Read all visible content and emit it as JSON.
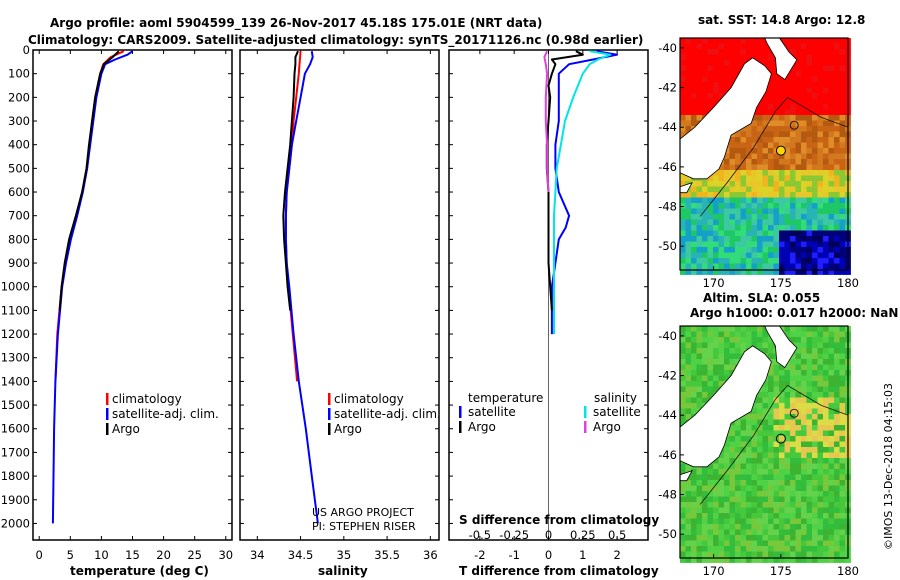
{
  "title": {
    "line1": "Argo profile: aoml 5904599_139 26-Nov-2017 45.18S 175.01E (NRT data)",
    "line2": "Climatology: CARS2009. Satellite-adjusted climatology: synTS_20171126.nc (0.98d earlier)"
  },
  "colors": {
    "climatology": "#ff0000",
    "satellite": "#0000ff",
    "argo": "#000000",
    "sat_salinity": "#00e5e5",
    "argo_salinity": "#e040e0"
  },
  "watermark": "©IMOS 13-Dec-2018 04:15:03",
  "credit": {
    "line1": "US ARGO PROJECT",
    "line2": "PI: STEPHEN RISER"
  },
  "chart_data": [
    {
      "type": "line",
      "id": "temperature",
      "xlabel": "temperature (deg C)",
      "ylabel": "depth",
      "xlim": [
        -1,
        31
      ],
      "ylim": [
        2070,
        0
      ],
      "xticks": [
        0,
        5,
        10,
        15,
        20,
        25,
        30
      ],
      "yticks": [
        0,
        100,
        200,
        300,
        400,
        500,
        600,
        700,
        800,
        900,
        1000,
        1100,
        1200,
        1300,
        1400,
        1500,
        1600,
        1700,
        1800,
        1900,
        2000
      ],
      "legend": {
        "position": "lower-right",
        "entries": [
          "climatology",
          "satellite-adj. clim.",
          "Argo"
        ]
      },
      "series": [
        {
          "name": "climatology",
          "color": "#ff0000",
          "depth": [
            5,
            30,
            60,
            100,
            150,
            200,
            300,
            400,
            500,
            600,
            700,
            800,
            900,
            1000,
            1200,
            1400
          ],
          "values": [
            13.6,
            11.5,
            10.3,
            9.8,
            9.4,
            9.0,
            8.5,
            8.1,
            7.7,
            7.0,
            6.0,
            5.0,
            4.2,
            3.6,
            2.9,
            2.6
          ]
        },
        {
          "name": "satellite-adj. clim.",
          "color": "#0000ff",
          "depth": [
            5,
            20,
            40,
            60,
            100,
            150,
            200,
            300,
            400,
            500,
            600,
            700,
            800,
            900,
            1000,
            1200,
            1400,
            1600,
            1800,
            2000
          ],
          "values": [
            15.0,
            14.2,
            12.2,
            10.6,
            10.0,
            9.6,
            9.2,
            8.7,
            8.2,
            7.7,
            7.0,
            6.1,
            5.1,
            4.3,
            3.7,
            3.0,
            2.6,
            2.4,
            2.3,
            2.2
          ]
        },
        {
          "name": "Argo",
          "color": "#000000",
          "depth": [
            5,
            30,
            60,
            100,
            150,
            200,
            300,
            400,
            500,
            600,
            700,
            800,
            900,
            1000,
            1100
          ],
          "values": [
            12.8,
            11.8,
            10.4,
            9.8,
            9.4,
            9.0,
            8.5,
            8.0,
            7.6,
            6.9,
            5.9,
            4.8,
            4.1,
            3.6,
            3.3
          ]
        }
      ]
    },
    {
      "type": "line",
      "id": "salinity",
      "xlabel": "salinity",
      "xlim": [
        33.8,
        36.1
      ],
      "ylim": [
        2070,
        0
      ],
      "xticks": [
        34,
        34.5,
        35,
        35.5,
        36
      ],
      "legend": {
        "position": "lower-right",
        "entries": [
          "climatology",
          "satellite-adj. clim.",
          "Argo"
        ]
      },
      "series": [
        {
          "name": "climatology",
          "color": "#ff0000",
          "depth": [
            5,
            50,
            100,
            200,
            300,
            400,
            500,
            600,
            700,
            800,
            900,
            1000,
            1200,
            1400
          ],
          "values": [
            34.5,
            34.49,
            34.48,
            34.45,
            34.42,
            34.4,
            34.37,
            34.34,
            34.33,
            34.33,
            34.34,
            34.36,
            34.41,
            34.46
          ]
        },
        {
          "name": "satellite-adj. clim.",
          "color": "#0000ff",
          "depth": [
            5,
            30,
            60,
            100,
            200,
            300,
            400,
            500,
            600,
            700,
            800,
            900,
            1000,
            1200,
            1400,
            1600,
            1800,
            2000
          ],
          "values": [
            34.63,
            34.64,
            34.61,
            34.55,
            34.5,
            34.45,
            34.4,
            34.37,
            34.34,
            34.33,
            34.33,
            34.34,
            34.37,
            34.42,
            34.48,
            34.56,
            34.63,
            34.7
          ]
        },
        {
          "name": "Argo",
          "color": "#000000",
          "depth": [
            5,
            30,
            60,
            100,
            200,
            300,
            400,
            500,
            600,
            700,
            800,
            900,
            1000,
            1100
          ],
          "values": [
            34.47,
            34.44,
            34.44,
            34.43,
            34.42,
            34.4,
            34.38,
            34.35,
            34.32,
            34.3,
            34.31,
            34.33,
            34.35,
            34.38
          ]
        }
      ]
    },
    {
      "type": "line",
      "id": "difference",
      "xlabel": "T difference from climatology",
      "xlabel2": "S difference from climatology",
      "xlim": [
        -2.9,
        2.9
      ],
      "ylim": [
        2070,
        0
      ],
      "xticks": [
        -2,
        -1,
        0,
        1,
        2
      ],
      "xticks_top_labels": [
        "-0.5",
        "-0.25",
        "0",
        "0.25",
        "0.5"
      ],
      "legend_temperature": {
        "title": "temperature",
        "entries": [
          "satellite",
          "Argo"
        ]
      },
      "legend_salinity": {
        "title": "salinity",
        "entries": [
          "satellite",
          "Argo"
        ]
      },
      "series": [
        {
          "name": "temperature satellite",
          "color": "#0000ff",
          "depth": [
            5,
            20,
            40,
            60,
            100,
            150,
            200,
            300,
            400,
            500,
            600,
            700,
            750,
            800,
            900,
            1000,
            1100,
            1200
          ],
          "values": [
            1.4,
            2.0,
            1.3,
            0.6,
            0.3,
            0.3,
            0.3,
            0.3,
            0.2,
            0.2,
            0.3,
            0.6,
            0.5,
            0.3,
            0.2,
            0.1,
            0.1,
            0.1
          ]
        },
        {
          "name": "temperature Argo",
          "color": "#000000",
          "depth": [
            5,
            20,
            40,
            60,
            100,
            150,
            200,
            300,
            400,
            500,
            600,
            700,
            800,
            900,
            1000,
            1100
          ],
          "values": [
            0.8,
            1.0,
            0.1,
            0.2,
            0.1,
            0.0,
            0.05,
            0.0,
            -0.05,
            -0.05,
            0.0,
            0.0,
            0.0,
            0.0,
            0.05,
            0.1
          ]
        },
        {
          "name": "salinity satellite",
          "color": "#00e5e5",
          "depth": [
            5,
            20,
            40,
            60,
            100,
            200,
            300,
            400,
            500,
            600,
            700,
            800,
            900,
            1000,
            1200
          ],
          "values": [
            0.3,
            0.45,
            0.36,
            0.3,
            0.25,
            0.18,
            0.12,
            0.09,
            0.06,
            0.05,
            0.04,
            0.04,
            0.04,
            0.04,
            0.04
          ]
        },
        {
          "name": "salinity Argo",
          "color": "#e040e0",
          "depth": [
            5,
            30,
            60,
            100,
            200,
            300,
            400,
            500,
            600
          ],
          "values": [
            -0.01,
            -0.03,
            -0.02,
            -0.01,
            -0.02,
            -0.02,
            -0.01,
            -0.01,
            0.0
          ]
        }
      ]
    },
    {
      "type": "heatmap",
      "id": "sst-map",
      "title": "sat. SST: 14.8 Argo: 12.8",
      "xticks": [
        170,
        175,
        180
      ],
      "yticks": [
        -40,
        -42,
        -44,
        -46,
        -48,
        -50
      ]
    },
    {
      "type": "heatmap",
      "id": "sla-map",
      "title_line1": "Altim. SLA: 0.055",
      "title_line2": "Argo h1000: 0.017 h2000: NaN",
      "xticks": [
        170,
        175,
        180
      ],
      "yticks": [
        -40,
        -42,
        -44,
        -46,
        -48,
        -50
      ]
    }
  ]
}
